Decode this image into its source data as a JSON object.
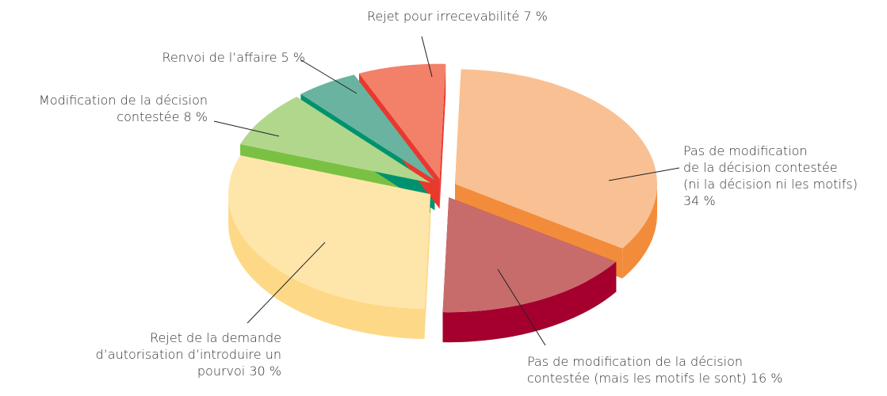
{
  "chart_data": {
    "type": "pie3d",
    "categories": [
      "Pas de modification\nde la décision contestée\n(ni la décision ni les motifs)",
      "Pas de modification de la décision\ncontestée (mais les motifs le sont)",
      "Rejet de la demande\nd’autorisation d’introduire un\npourvoi",
      "Modification de la décision\ncontestée",
      "Renvoi de l’affaire",
      "Rejet pour irrecevabilité"
    ],
    "values": [
      34,
      16,
      30,
      8,
      5,
      7
    ],
    "value_labels": [
      "34 %",
      "16 %",
      "30 %",
      "8 %",
      "5 %",
      "7 %"
    ],
    "colors": [
      "#f9c093",
      "#c76c6b",
      "#fee6aa",
      "#b1d78c",
      "#6ab3a1",
      "#f38069"
    ],
    "side_colors": [
      "#f28c3a",
      "#a5002d",
      "#fdd987",
      "#7ac143",
      "#00926f",
      "#e8392f"
    ]
  }
}
